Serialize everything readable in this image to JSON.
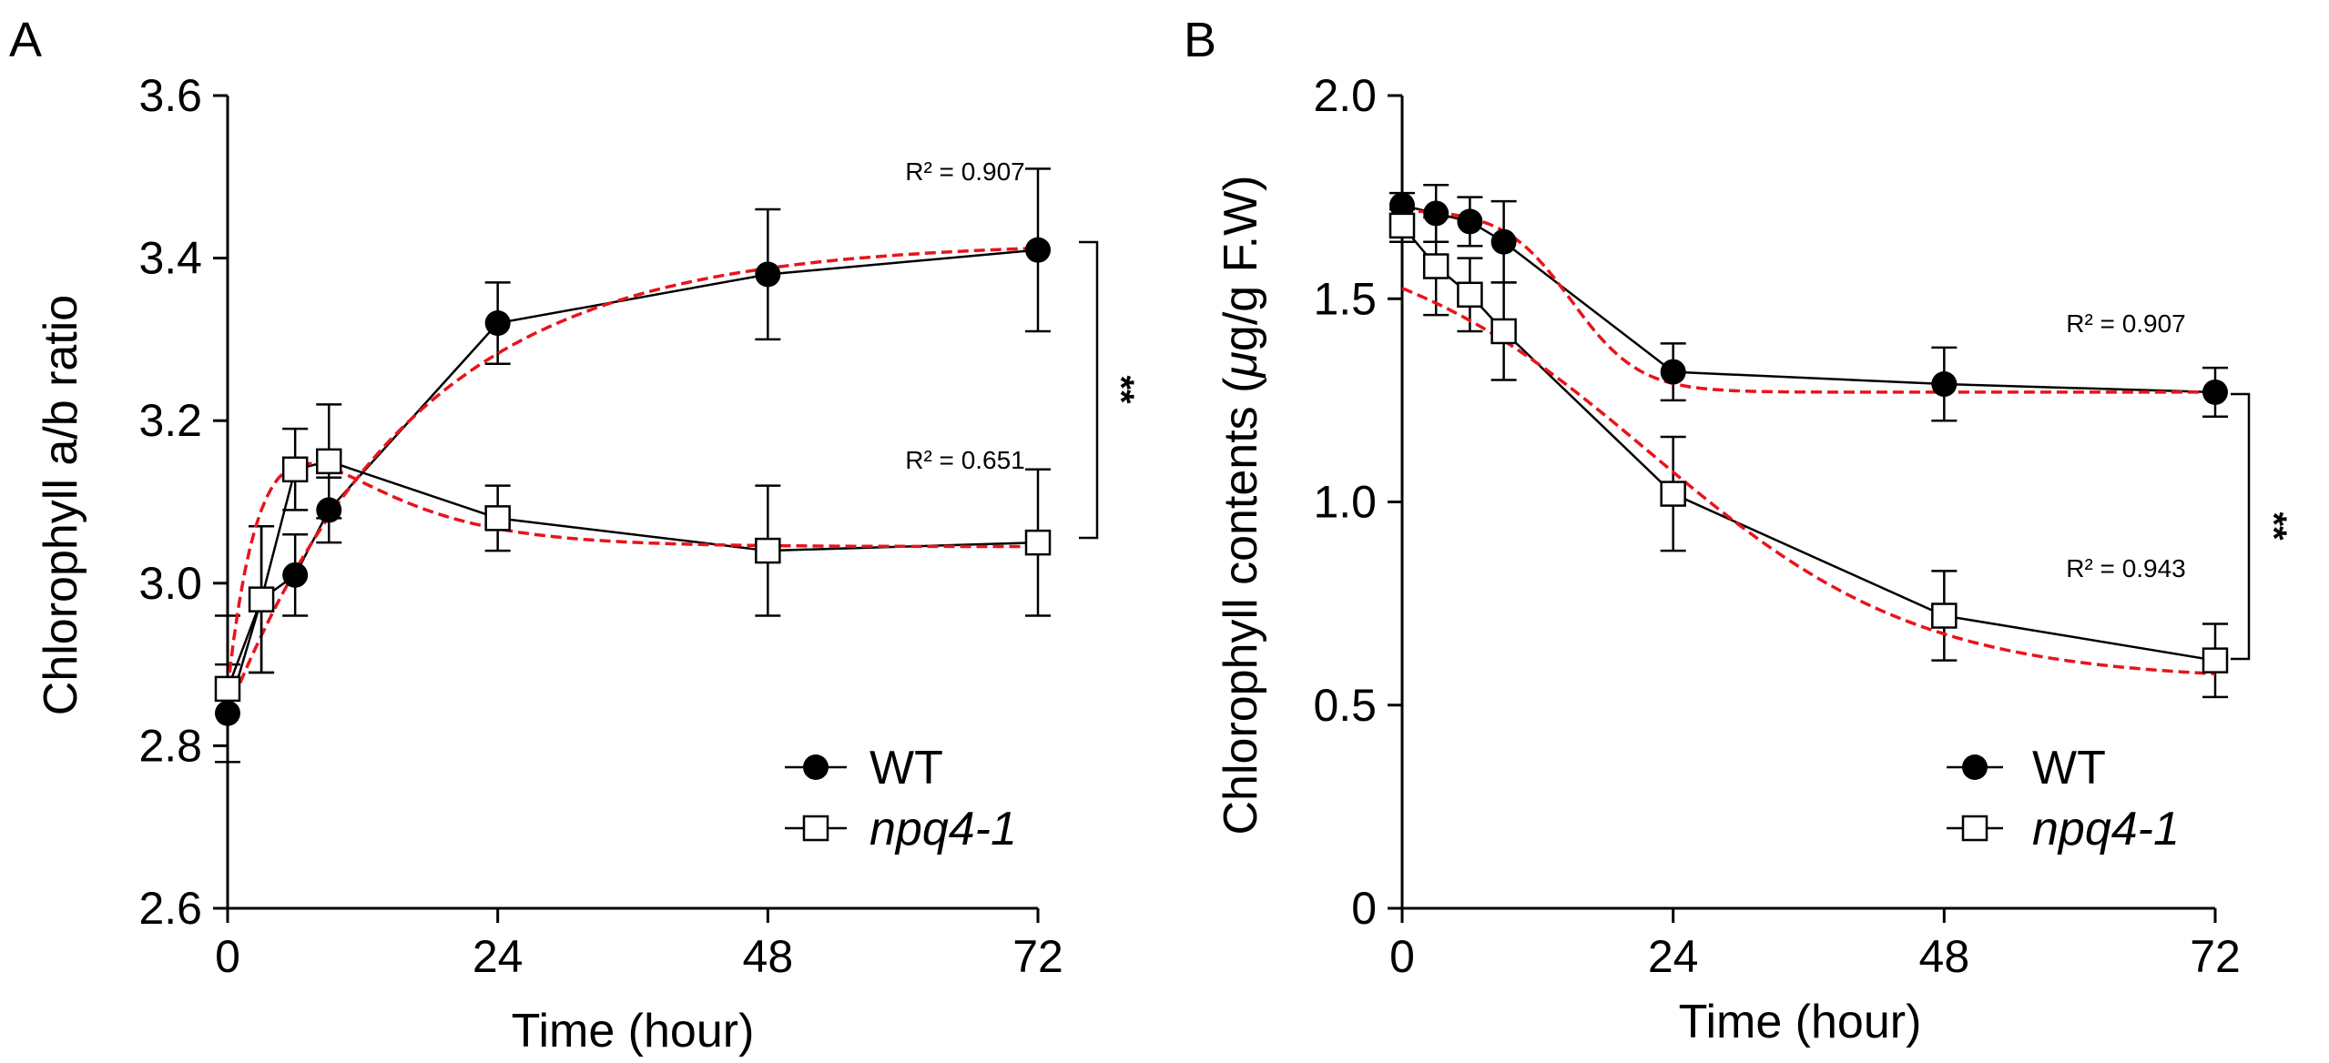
{
  "chart_data": [
    {
      "panel": "A",
      "type": "line",
      "xlabel": "Time (hour)",
      "ylabel": "Chlorophyll a/b ratio",
      "xlim": [
        0,
        72
      ],
      "ylim": [
        2.6,
        3.6
      ],
      "xticks": [
        0,
        24,
        48,
        72
      ],
      "yticks": [
        2.6,
        2.8,
        3.0,
        3.2,
        3.4,
        3.6
      ],
      "ytick_labels": [
        "2.6",
        "2.8",
        "3.0",
        "3.2",
        "3.4",
        "3.6"
      ],
      "series": [
        {
          "name": "WT",
          "marker": "filled-circle",
          "x": [
            0,
            3,
            6,
            9,
            24,
            48,
            72
          ],
          "y": [
            2.84,
            2.98,
            3.01,
            3.09,
            3.32,
            3.38,
            3.41
          ],
          "err": [
            0.06,
            0.09,
            0.05,
            0.04,
            0.05,
            0.08,
            0.1
          ],
          "fit": {
            "type": "mono-exp",
            "base": 2.84,
            "amp": 0.58,
            "k": 0.06
          },
          "r2_label": "R² = 0.907"
        },
        {
          "name": "npq4-1",
          "marker": "open-square",
          "x": [
            0,
            3,
            6,
            9,
            24,
            48,
            72
          ],
          "y": [
            2.87,
            2.98,
            3.14,
            3.15,
            3.08,
            3.04,
            3.05
          ],
          "err": [
            0.09,
            0.09,
            0.05,
            0.07,
            0.04,
            0.08,
            0.09
          ],
          "fit": {
            "type": "bi-exp",
            "base": 2.87,
            "asym": 3.045,
            "amp": 0.4,
            "kup": 0.3,
            "kdown": 0.12
          },
          "r2_label": "R² = 0.651"
        }
      ],
      "significance": "**"
    },
    {
      "panel": "B",
      "type": "line",
      "xlabel": "Time (hour)",
      "ylabel_parts": [
        "Chlorophyll contents (",
        "μ",
        "g/g F.W)"
      ],
      "xlim": [
        0,
        72
      ],
      "ylim": [
        0,
        2.0
      ],
      "xticks": [
        0,
        24,
        48,
        72
      ],
      "yticks": [
        0,
        0.5,
        1.0,
        1.5,
        2.0
      ],
      "ytick_labels": [
        "0",
        "0.5",
        "1.0",
        "1.5",
        "2.0"
      ],
      "series": [
        {
          "name": "WT",
          "marker": "filled-circle",
          "x": [
            0,
            3,
            6,
            9,
            24,
            48,
            72
          ],
          "y": [
            1.73,
            1.71,
            1.69,
            1.64,
            1.32,
            1.29,
            1.27
          ],
          "err": [
            0.03,
            0.07,
            0.06,
            0.1,
            0.07,
            0.09,
            0.06
          ],
          "fit": {
            "type": "sigmoid-decay",
            "low": 1.27,
            "high": 1.72,
            "mid": 15,
            "width": 3
          },
          "r2_label": "R² = 0.907"
        },
        {
          "name": "npq4-1",
          "marker": "open-square",
          "x": [
            0,
            3,
            6,
            9,
            24,
            48,
            72
          ],
          "y": [
            1.68,
            1.58,
            1.51,
            1.42,
            1.02,
            0.72,
            0.61
          ],
          "err": [
            0.04,
            0.12,
            0.09,
            0.12,
            0.14,
            0.11,
            0.09
          ],
          "fit": {
            "type": "sigmoid-decay",
            "low": 0.56,
            "high": 1.68,
            "mid": 22,
            "width": 12
          },
          "r2_label": "R² = 0.943"
        }
      ],
      "significance": "**"
    }
  ],
  "legend": {
    "wt": "WT",
    "mutant": "npq4-1"
  },
  "colors": {
    "data": "#000000",
    "fit": "#e8141b",
    "background": "#ffffff"
  }
}
